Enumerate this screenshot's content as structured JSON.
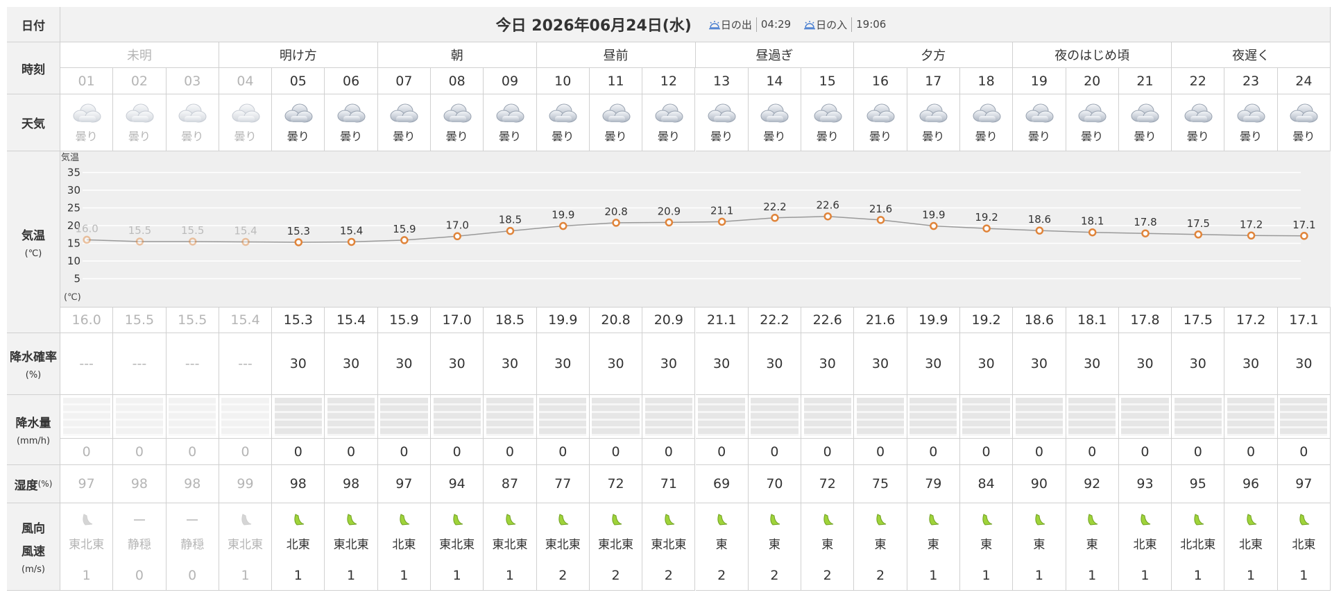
{
  "header": {
    "date_label": "日付",
    "title": "今日 2026年06月24日(水)",
    "sunrise_label": "日の出",
    "sunrise": "04:29",
    "sunset_label": "日の入",
    "sunset": "19:06"
  },
  "time": {
    "label": "時刻",
    "periods": [
      {
        "label": "未明",
        "hours": [
          "01",
          "02",
          "03"
        ]
      },
      {
        "label": "明け方",
        "hours": [
          "04",
          "05",
          "06"
        ]
      },
      {
        "label": "朝",
        "hours": [
          "07",
          "08",
          "09"
        ]
      },
      {
        "label": "昼前",
        "hours": [
          "10",
          "11",
          "12"
        ]
      },
      {
        "label": "昼過ぎ",
        "hours": [
          "13",
          "14",
          "15"
        ]
      },
      {
        "label": "夕方",
        "hours": [
          "16",
          "17",
          "18"
        ]
      },
      {
        "label": "夜のはじめ頃",
        "hours": [
          "19",
          "20",
          "21"
        ]
      },
      {
        "label": "夜遅く",
        "hours": [
          "22",
          "23",
          "24"
        ]
      }
    ]
  },
  "weather": {
    "label": "天気",
    "values": [
      "曇り",
      "曇り",
      "曇り",
      "曇り",
      "曇り",
      "曇り",
      "曇り",
      "曇り",
      "曇り",
      "曇り",
      "曇り",
      "曇り",
      "曇り",
      "曇り",
      "曇り",
      "曇り",
      "曇り",
      "曇り",
      "曇り",
      "曇り",
      "曇り",
      "曇り",
      "曇り",
      "曇り"
    ]
  },
  "temperature": {
    "label": "気温",
    "unit": "(℃)",
    "chart": {
      "type": "line",
      "axis_label": "気温",
      "unit_label": "(℃)",
      "ylim": [
        0,
        40
      ],
      "yticks": [
        5,
        10,
        15,
        20,
        25,
        30,
        35
      ],
      "grid": true,
      "color": "#e0843a",
      "values": [
        16.0,
        15.5,
        15.5,
        15.4,
        15.3,
        15.4,
        15.9,
        17.0,
        18.5,
        19.9,
        20.8,
        20.9,
        21.1,
        22.2,
        22.6,
        21.6,
        19.9,
        19.2,
        18.6,
        18.1,
        17.8,
        17.5,
        17.2,
        17.1
      ],
      "value_labels": [
        "16.0",
        "15.5",
        "15.5",
        "15.4",
        "15.3",
        "15.4",
        "15.9",
        "17.0",
        "18.5",
        "19.9",
        "20.8",
        "20.9",
        "21.1",
        "22.2",
        "22.6",
        "21.6",
        "19.9",
        "19.2",
        "18.6",
        "18.1",
        "17.8",
        "17.5",
        "17.2",
        "17.1"
      ]
    }
  },
  "precip_probability": {
    "label": "降水確率",
    "unit": "(%)",
    "values": [
      "---",
      "---",
      "---",
      "---",
      30,
      30,
      30,
      30,
      30,
      30,
      30,
      30,
      30,
      30,
      30,
      30,
      30,
      30,
      30,
      30,
      30,
      30,
      30,
      30
    ]
  },
  "precip_amount": {
    "label": "降水量",
    "unit": "(mm/h)",
    "values": [
      0,
      0,
      0,
      0,
      0,
      0,
      0,
      0,
      0,
      0,
      0,
      0,
      0,
      0,
      0,
      0,
      0,
      0,
      0,
      0,
      0,
      0,
      0,
      0
    ]
  },
  "humidity": {
    "label": "湿度",
    "unit": "(%)",
    "values": [
      97,
      98,
      98,
      99,
      98,
      98,
      97,
      94,
      87,
      77,
      72,
      71,
      69,
      70,
      72,
      75,
      79,
      84,
      90,
      92,
      93,
      95,
      96,
      97
    ]
  },
  "wind": {
    "direction_label": "風向",
    "speed_label": "風速",
    "unit": "(m/s)",
    "directions": [
      "東北東",
      "静穏",
      "静穏",
      "東北東",
      "北東",
      "東北東",
      "北東",
      "東北東",
      "東北東",
      "東北東",
      "東北東",
      "東北東",
      "東",
      "東",
      "東",
      "東",
      "東",
      "東",
      "東",
      "東",
      "北東",
      "北北東",
      "北東",
      "北東"
    ],
    "speeds": [
      1,
      0,
      0,
      1,
      1,
      1,
      1,
      1,
      1,
      2,
      2,
      2,
      2,
      2,
      2,
      2,
      1,
      1,
      1,
      1,
      1,
      1,
      1,
      1
    ]
  }
}
